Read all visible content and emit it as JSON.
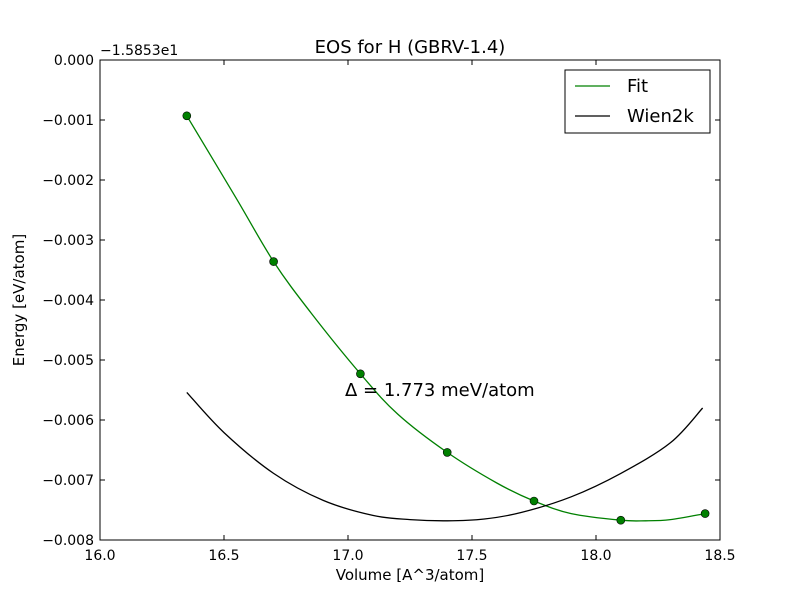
{
  "chart_data": {
    "type": "line",
    "title": "EOS for H (GBRV-1.4)",
    "xlabel": "Volume [A^3/atom]",
    "ylabel": "Energy [eV/atom]",
    "y_offset_label": "−1.5853e1",
    "annotation": "Δ = 1.773 meV/atom",
    "xlim": [
      16.0,
      18.5
    ],
    "ylim": [
      -0.008,
      0.0
    ],
    "x_ticks": [
      16.0,
      16.5,
      17.0,
      17.5,
      18.0,
      18.5
    ],
    "x_tick_labels": [
      "16.0",
      "16.5",
      "17.0",
      "17.5",
      "18.0",
      "18.5"
    ],
    "y_ticks": [
      0.0,
      -0.001,
      -0.002,
      -0.003,
      -0.004,
      -0.005,
      -0.006,
      -0.007,
      -0.008
    ],
    "y_tick_labels": [
      "0.000",
      "−0.001",
      "−0.002",
      "−0.003",
      "−0.004",
      "−0.005",
      "−0.006",
      "−0.007",
      "−0.008"
    ],
    "grid": false,
    "legend_position": "top-right",
    "series": [
      {
        "name": "Fit",
        "color": "#008000",
        "x": [
          16.35,
          16.55,
          16.7,
          16.85,
          17.05,
          17.2,
          17.4,
          17.6,
          17.75,
          17.9,
          18.1,
          18.2,
          18.3,
          18.44
        ],
        "y": [
          -0.00093,
          -0.00231,
          -0.00336,
          -0.00421,
          -0.00523,
          -0.0059,
          -0.00654,
          -0.00705,
          -0.00735,
          -0.00756,
          -0.00767,
          -0.00768,
          -0.00766,
          -0.00756
        ]
      },
      {
        "name": "Wien2k",
        "color": "#000000",
        "x": [
          16.35,
          16.5,
          16.7,
          16.9,
          17.1,
          17.25,
          17.4,
          17.55,
          17.7,
          17.9,
          18.1,
          18.3,
          18.43
        ],
        "y": [
          -0.00554,
          -0.00621,
          -0.00689,
          -0.00734,
          -0.00759,
          -0.00766,
          -0.00768,
          -0.00765,
          -0.00754,
          -0.00728,
          -0.00689,
          -0.00638,
          -0.0058
        ]
      }
    ],
    "points": {
      "color": "#008000",
      "x": [
        16.35,
        16.7,
        17.05,
        17.4,
        17.75,
        18.1,
        18.44
      ],
      "y": [
        -0.00093,
        -0.00336,
        -0.00523,
        -0.00654,
        -0.00735,
        -0.00767,
        -0.00756
      ]
    }
  }
}
